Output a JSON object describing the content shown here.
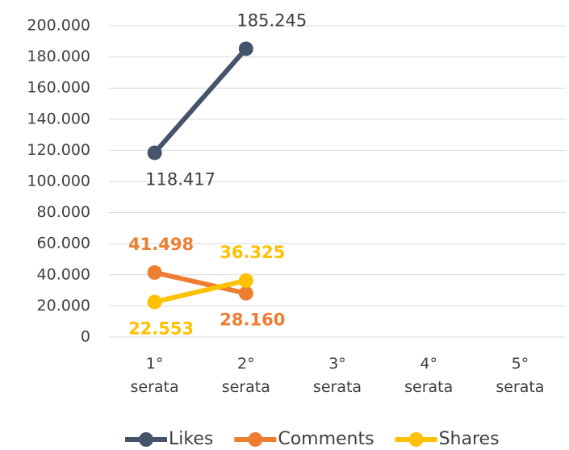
{
  "chart_data": {
    "type": "line",
    "categories": [
      "1° serata",
      "2° serata",
      "3° serata",
      "4° serata",
      "5° serata"
    ],
    "series": [
      {
        "name": "Likes",
        "color": "#44546a",
        "values": [
          118417,
          185245,
          null,
          null,
          null
        ],
        "value_labels": [
          "118.417",
          "185.245",
          null,
          null,
          null
        ]
      },
      {
        "name": "Comments",
        "color": "#ed7d31",
        "values": [
          41498,
          28160,
          null,
          null,
          null
        ],
        "value_labels": [
          "41.498",
          "28.160",
          null,
          null,
          null
        ]
      },
      {
        "name": "Shares",
        "color": "#ffc000",
        "values": [
          22553,
          36325,
          null,
          null,
          null
        ],
        "value_labels": [
          "22.553",
          "36.325",
          null,
          null,
          null
        ]
      }
    ],
    "ylim": [
      0,
      200000
    ],
    "yticks": [
      0,
      {
        "value": 20000,
        "label": "20.000"
      },
      {
        "value": 40000,
        "label": "40.000"
      },
      {
        "value": 60000,
        "label": "60.000"
      },
      {
        "value": 80000,
        "label": "80.000"
      },
      {
        "value": 100000,
        "label": "100.000"
      },
      {
        "value": 120000,
        "label": "120.000"
      },
      {
        "value": 140000,
        "label": "140.000"
      },
      {
        "value": 160000,
        "label": "160.000"
      },
      {
        "value": 180000,
        "label": "180.000"
      },
      {
        "value": 200000,
        "label": "200.000"
      }
    ],
    "grid": true,
    "legend": "bottom"
  }
}
